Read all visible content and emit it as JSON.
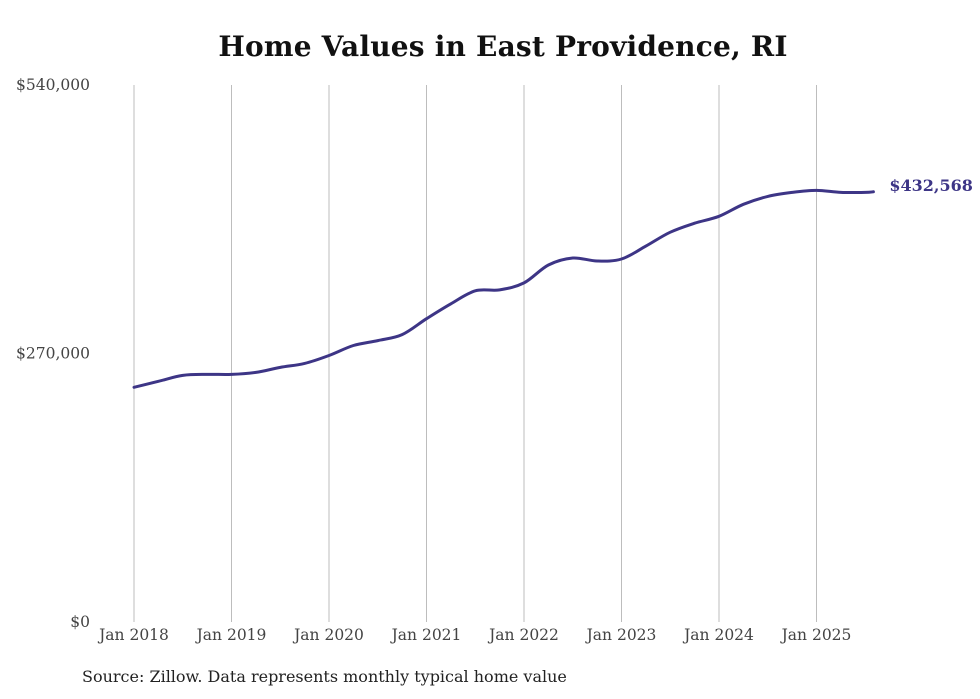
{
  "chart_data": {
    "type": "line",
    "title": "Home Values in East Providence, RI",
    "xlabel": "",
    "ylabel": "",
    "ylim": [
      0,
      540000
    ],
    "y_ticks": [
      {
        "value": 0,
        "label": "$0"
      },
      {
        "value": 270000,
        "label": "$270,000"
      },
      {
        "value": 540000,
        "label": "$540,000"
      }
    ],
    "x_ticks": [
      {
        "date": "2018-01",
        "label": "Jan 2018"
      },
      {
        "date": "2019-01",
        "label": "Jan 2019"
      },
      {
        "date": "2020-01",
        "label": "Jan 2020"
      },
      {
        "date": "2021-01",
        "label": "Jan 2021"
      },
      {
        "date": "2022-01",
        "label": "Jan 2022"
      },
      {
        "date": "2023-01",
        "label": "Jan 2023"
      },
      {
        "date": "2024-01",
        "label": "Jan 2024"
      },
      {
        "date": "2025-01",
        "label": "Jan 2025"
      }
    ],
    "grid": "vertical",
    "line_color": "#3d3586",
    "end_label": "$432,568",
    "series": [
      {
        "x": [
          "2018-01",
          "2018-04",
          "2018-07",
          "2018-10",
          "2019-01",
          "2019-04",
          "2019-07",
          "2019-10",
          "2020-01",
          "2020-04",
          "2020-07",
          "2020-10",
          "2021-01",
          "2021-04",
          "2021-07",
          "2021-10",
          "2022-01",
          "2022-04",
          "2022-07",
          "2022-10",
          "2023-01",
          "2023-04",
          "2023-07",
          "2023-10",
          "2024-01",
          "2024-04",
          "2024-07",
          "2024-10",
          "2025-01",
          "2025-04",
          "2025-07",
          "2025-08"
        ],
        "y": [
          236000,
          242000,
          248000,
          249000,
          249000,
          251000,
          256000,
          260000,
          268000,
          278000,
          283000,
          289000,
          305000,
          320000,
          333000,
          334000,
          341000,
          359000,
          366000,
          363000,
          365000,
          378000,
          392000,
          401000,
          408000,
          420000,
          428000,
          432000,
          434000,
          432000,
          432000,
          432568
        ]
      }
    ]
  },
  "source": "Source: Zillow. Data represents monthly typical home value"
}
